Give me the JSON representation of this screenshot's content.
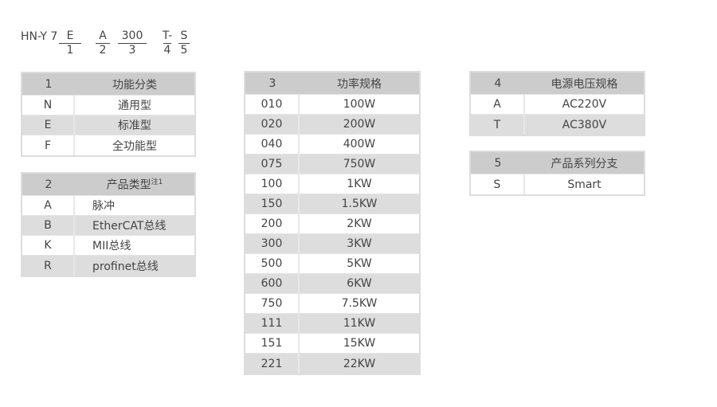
{
  "code": {
    "prefix": "HN-Y 7",
    "segments": [
      {
        "value": "E",
        "index": "1"
      },
      {
        "value": "A",
        "index": "2"
      },
      {
        "value": "300",
        "index": "3"
      },
      {
        "value": "T-",
        "index": "4"
      },
      {
        "value": "S",
        "index": "5"
      }
    ]
  },
  "t1": {
    "num": "1",
    "title": "功能分类",
    "rows": [
      [
        "N",
        "通用型"
      ],
      [
        "E",
        "标准型"
      ],
      [
        "F",
        "全功能型"
      ]
    ]
  },
  "t2": {
    "num": "2",
    "title": "产品类型",
    "note": "注1",
    "rows": [
      [
        "A",
        "脉冲"
      ],
      [
        "B",
        "EtherCAT总线"
      ],
      [
        "K",
        "MII总线"
      ],
      [
        "R",
        "profinet总线"
      ]
    ]
  },
  "t3": {
    "num": "3",
    "title": "功率规格",
    "rows": [
      [
        "010",
        "100W"
      ],
      [
        "020",
        "200W"
      ],
      [
        "040",
        "400W"
      ],
      [
        "075",
        "750W"
      ],
      [
        "100",
        "1KW"
      ],
      [
        "150",
        "1.5KW"
      ],
      [
        "200",
        "2KW"
      ],
      [
        "300",
        "3KW"
      ],
      [
        "500",
        "5KW"
      ],
      [
        "600",
        "6KW"
      ],
      [
        "750",
        "7.5KW"
      ],
      [
        "111",
        "11KW"
      ],
      [
        "151",
        "15KW"
      ],
      [
        "221",
        "22KW"
      ]
    ]
  },
  "t4": {
    "num": "4",
    "title": "电源电压规格",
    "rows": [
      [
        "A",
        "AC220V"
      ],
      [
        "T",
        "AC380V"
      ]
    ]
  },
  "t5": {
    "num": "5",
    "title": "产品系列分支",
    "rows": [
      [
        "S",
        "Smart"
      ]
    ]
  },
  "colors": {
    "header": "#cccccc",
    "alt_row": "#dddddd",
    "text": "#444444"
  }
}
